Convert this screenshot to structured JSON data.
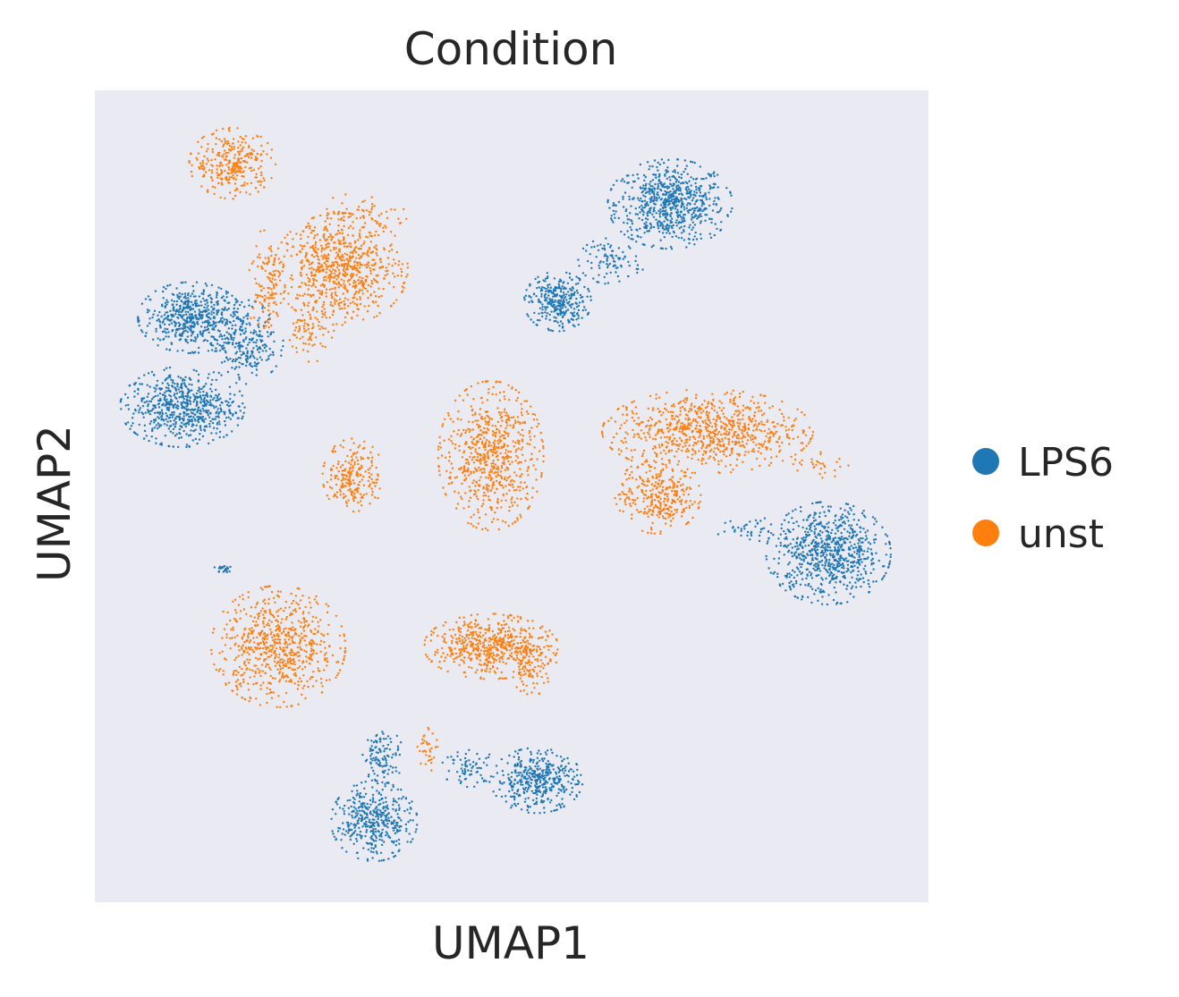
{
  "chart_data": {
    "type": "scatter",
    "title": "Condition",
    "xlabel": "UMAP1",
    "ylabel": "UMAP2",
    "xlim": [
      0,
      100
    ],
    "ylim": [
      0,
      100
    ],
    "grid": false,
    "ticks": "none",
    "background": "#eaeaf2",
    "legend_position": "right",
    "series": [
      {
        "name": "LPS6",
        "color": "#1f77b4",
        "clusters": [
          {
            "cx": 69,
            "cy": 86,
            "rx": 6.5,
            "ry": 4.8,
            "n": 700
          },
          {
            "cx": 55.5,
            "cy": 74,
            "rx": 3.5,
            "ry": 3.2,
            "n": 320
          },
          {
            "cx": 62,
            "cy": 79,
            "rx": 3.5,
            "ry": 2.5,
            "n": 90
          },
          {
            "cx": 11.5,
            "cy": 72,
            "rx": 5.5,
            "ry": 3.8,
            "n": 520
          },
          {
            "cx": 10.5,
            "cy": 61,
            "rx": 6.5,
            "ry": 4.3,
            "n": 640
          },
          {
            "cx": 18,
            "cy": 69,
            "rx": 4,
            "ry": 4.5,
            "n": 260
          },
          {
            "cx": 88,
            "cy": 43,
            "rx": 6.5,
            "ry": 5.5,
            "n": 760
          },
          {
            "cx": 33.5,
            "cy": 10,
            "rx": 4.5,
            "ry": 4.3,
            "n": 420
          },
          {
            "cx": 34.5,
            "cy": 18,
            "rx": 2.2,
            "ry": 3,
            "n": 110
          },
          {
            "cx": 53,
            "cy": 15,
            "rx": 4.8,
            "ry": 3.5,
            "n": 420
          },
          {
            "cx": 45,
            "cy": 16.5,
            "rx": 3,
            "ry": 2,
            "n": 70
          },
          {
            "cx": 15.5,
            "cy": 41,
            "rx": 1.2,
            "ry": 0.6,
            "n": 25
          },
          {
            "cx": 79,
            "cy": 46,
            "rx": 4,
            "ry": 1.5,
            "n": 40
          }
        ]
      },
      {
        "name": "unst",
        "color": "#ff7f0e",
        "clusters": [
          {
            "cx": 16.5,
            "cy": 91,
            "rx": 4.5,
            "ry": 3.8,
            "n": 300
          },
          {
            "cx": 29.5,
            "cy": 78,
            "rx": 7,
            "ry": 6,
            "n": 760
          },
          {
            "cx": 20.5,
            "cy": 76,
            "rx": 2,
            "ry": 6,
            "n": 120
          },
          {
            "cx": 26,
            "cy": 70,
            "rx": 2.5,
            "ry": 3,
            "n": 70
          },
          {
            "cx": 47.5,
            "cy": 55,
            "rx": 5.5,
            "ry": 8,
            "n": 680
          },
          {
            "cx": 31,
            "cy": 52.5,
            "rx": 3.2,
            "ry": 4,
            "n": 220
          },
          {
            "cx": 73.5,
            "cy": 58,
            "rx": 11,
            "ry": 4.5,
            "n": 820
          },
          {
            "cx": 67.5,
            "cy": 50,
            "rx": 4.5,
            "ry": 4,
            "n": 320
          },
          {
            "cx": 22,
            "cy": 31.5,
            "rx": 7,
            "ry": 6.5,
            "n": 700
          },
          {
            "cx": 47.5,
            "cy": 31.5,
            "rx": 7,
            "ry": 3.5,
            "n": 560
          },
          {
            "cx": 52.5,
            "cy": 29,
            "rx": 2.5,
            "ry": 3,
            "n": 90
          },
          {
            "cx": 40,
            "cy": 19,
            "rx": 1.2,
            "ry": 2.5,
            "n": 35
          },
          {
            "cx": 32,
            "cy": 85,
            "rx": 5,
            "ry": 2,
            "n": 60
          },
          {
            "cx": 87,
            "cy": 54,
            "rx": 3.5,
            "ry": 1.5,
            "n": 30
          }
        ]
      }
    ]
  }
}
